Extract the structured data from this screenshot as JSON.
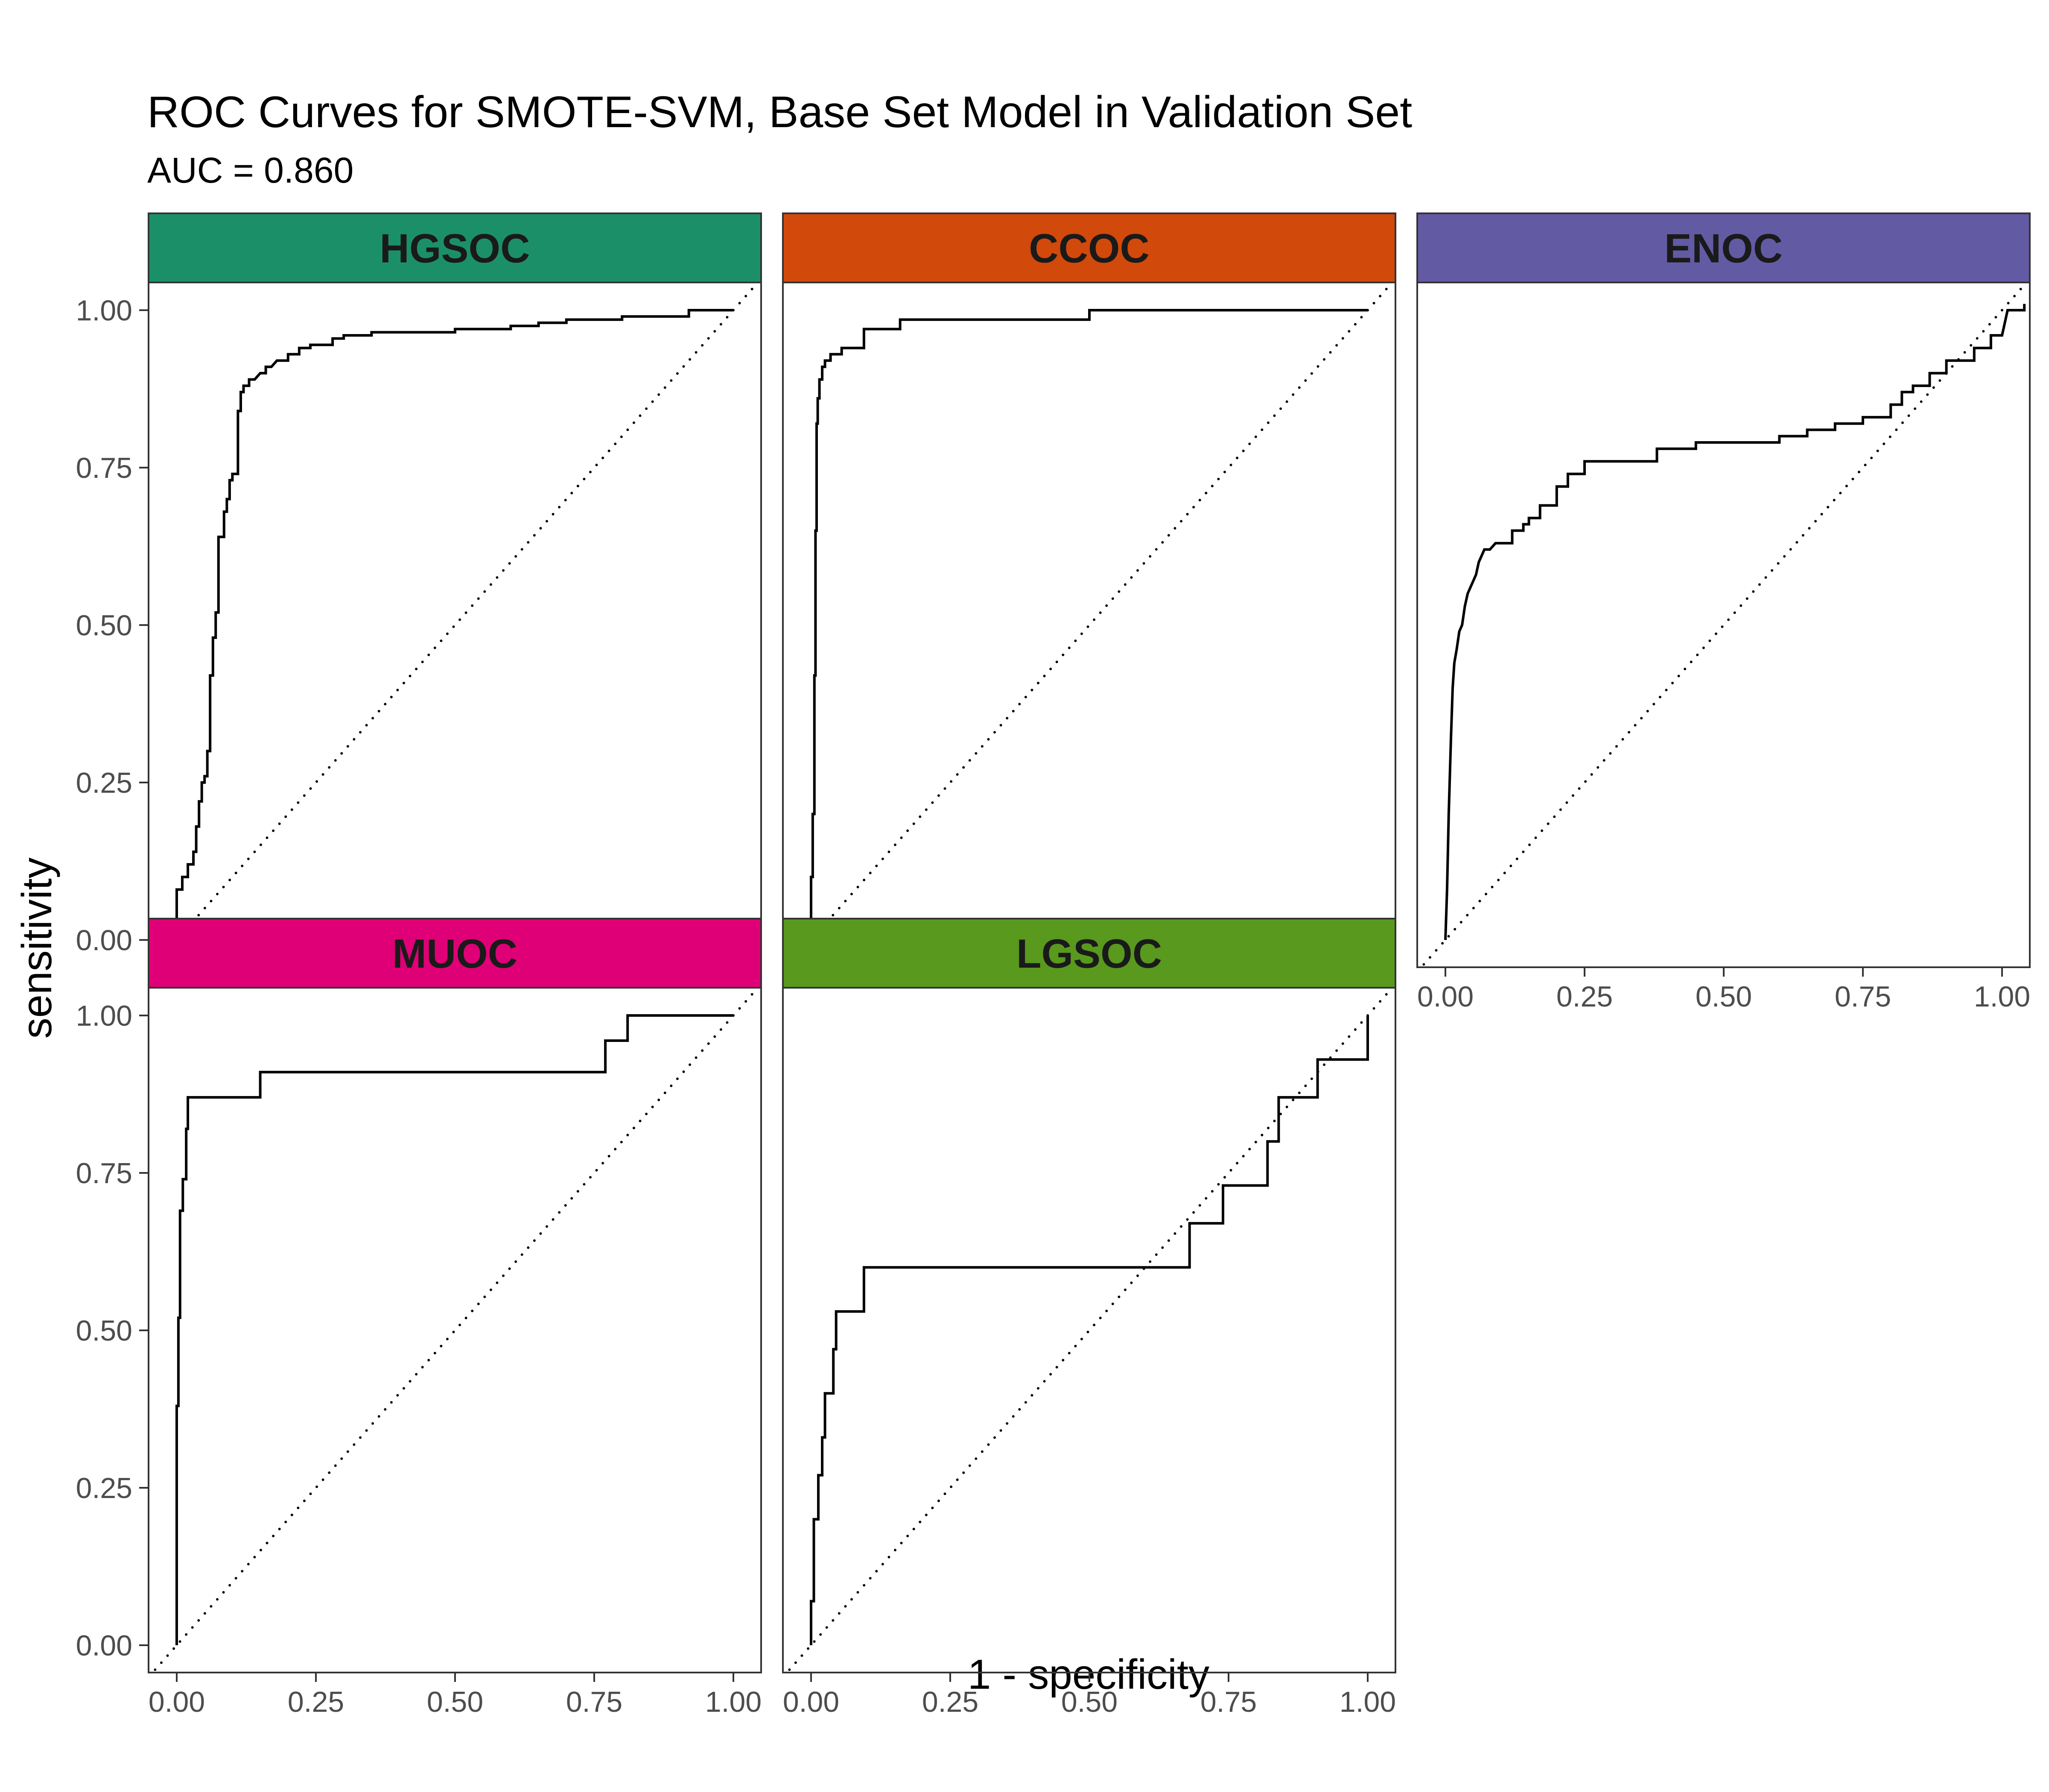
{
  "title": "ROC Curves for SMOTE-SVM, Base Set Model in Validation Set",
  "subtitle": "AUC = 0.860",
  "chart_data": {
    "type": "line",
    "layout": "faceted",
    "xlabel": "1 - specificity",
    "ylabel": "sensitivity",
    "xlim": [
      0,
      1
    ],
    "ylim": [
      0,
      1
    ],
    "x_ticks": [
      "0.00",
      "0.25",
      "0.50",
      "0.75",
      "1.00"
    ],
    "y_ticks": [
      "0.00",
      "0.25",
      "0.50",
      "0.75",
      "1.00"
    ],
    "grid": false,
    "reference_line": {
      "style": "dotted",
      "from": [
        0,
        0
      ],
      "to": [
        1,
        1
      ]
    },
    "panels": [
      {
        "name": "HGSOC",
        "strip_color": "#1b9068",
        "points": [
          [
            0,
            0
          ],
          [
            0,
            0.08
          ],
          [
            0.01,
            0.08
          ],
          [
            0.01,
            0.1
          ],
          [
            0.02,
            0.1
          ],
          [
            0.02,
            0.12
          ],
          [
            0.03,
            0.12
          ],
          [
            0.03,
            0.14
          ],
          [
            0.035,
            0.14
          ],
          [
            0.035,
            0.18
          ],
          [
            0.04,
            0.18
          ],
          [
            0.04,
            0.22
          ],
          [
            0.045,
            0.22
          ],
          [
            0.045,
            0.25
          ],
          [
            0.05,
            0.25
          ],
          [
            0.05,
            0.26
          ],
          [
            0.055,
            0.26
          ],
          [
            0.055,
            0.3
          ],
          [
            0.06,
            0.3
          ],
          [
            0.06,
            0.42
          ],
          [
            0.065,
            0.42
          ],
          [
            0.065,
            0.48
          ],
          [
            0.07,
            0.48
          ],
          [
            0.07,
            0.52
          ],
          [
            0.075,
            0.52
          ],
          [
            0.075,
            0.64
          ],
          [
            0.085,
            0.64
          ],
          [
            0.085,
            0.68
          ],
          [
            0.09,
            0.68
          ],
          [
            0.09,
            0.7
          ],
          [
            0.095,
            0.7
          ],
          [
            0.095,
            0.73
          ],
          [
            0.1,
            0.73
          ],
          [
            0.1,
            0.74
          ],
          [
            0.11,
            0.74
          ],
          [
            0.11,
            0.84
          ],
          [
            0.115,
            0.84
          ],
          [
            0.115,
            0.87
          ],
          [
            0.12,
            0.87
          ],
          [
            0.12,
            0.88
          ],
          [
            0.13,
            0.88
          ],
          [
            0.13,
            0.89
          ],
          [
            0.14,
            0.89
          ],
          [
            0.15,
            0.9
          ],
          [
            0.16,
            0.9
          ],
          [
            0.16,
            0.91
          ],
          [
            0.17,
            0.91
          ],
          [
            0.18,
            0.92
          ],
          [
            0.2,
            0.92
          ],
          [
            0.2,
            0.93
          ],
          [
            0.22,
            0.93
          ],
          [
            0.22,
            0.94
          ],
          [
            0.24,
            0.94
          ],
          [
            0.24,
            0.945
          ],
          [
            0.28,
            0.945
          ],
          [
            0.28,
            0.955
          ],
          [
            0.3,
            0.955
          ],
          [
            0.3,
            0.96
          ],
          [
            0.35,
            0.96
          ],
          [
            0.35,
            0.965
          ],
          [
            0.5,
            0.965
          ],
          [
            0.5,
            0.97
          ],
          [
            0.6,
            0.97
          ],
          [
            0.6,
            0.975
          ],
          [
            0.65,
            0.975
          ],
          [
            0.65,
            0.98
          ],
          [
            0.7,
            0.98
          ],
          [
            0.7,
            0.985
          ],
          [
            0.8,
            0.985
          ],
          [
            0.8,
            0.99
          ],
          [
            0.92,
            0.99
          ],
          [
            0.92,
            1
          ],
          [
            1,
            1
          ]
        ]
      },
      {
        "name": "CCOC",
        "strip_color": "#d1490b",
        "points": [
          [
            0,
            0
          ],
          [
            0,
            0.1
          ],
          [
            0.003,
            0.1
          ],
          [
            0.003,
            0.2
          ],
          [
            0.006,
            0.2
          ],
          [
            0.006,
            0.42
          ],
          [
            0.008,
            0.42
          ],
          [
            0.008,
            0.65
          ],
          [
            0.01,
            0.65
          ],
          [
            0.01,
            0.82
          ],
          [
            0.012,
            0.82
          ],
          [
            0.012,
            0.86
          ],
          [
            0.015,
            0.86
          ],
          [
            0.015,
            0.89
          ],
          [
            0.02,
            0.89
          ],
          [
            0.02,
            0.91
          ],
          [
            0.025,
            0.91
          ],
          [
            0.025,
            0.92
          ],
          [
            0.035,
            0.92
          ],
          [
            0.035,
            0.93
          ],
          [
            0.055,
            0.93
          ],
          [
            0.055,
            0.94
          ],
          [
            0.095,
            0.94
          ],
          [
            0.095,
            0.97
          ],
          [
            0.16,
            0.97
          ],
          [
            0.16,
            0.985
          ],
          [
            0.5,
            0.985
          ],
          [
            0.5,
            1
          ],
          [
            1,
            1
          ]
        ]
      },
      {
        "name": "ENOC",
        "strip_color": "#635aa4",
        "points": [
          [
            0,
            0
          ],
          [
            0.003,
            0.08
          ],
          [
            0.006,
            0.2
          ],
          [
            0.01,
            0.32
          ],
          [
            0.013,
            0.4
          ],
          [
            0.016,
            0.44
          ],
          [
            0.02,
            0.46
          ],
          [
            0.025,
            0.49
          ],
          [
            0.03,
            0.5
          ],
          [
            0.035,
            0.53
          ],
          [
            0.04,
            0.55
          ],
          [
            0.045,
            0.56
          ],
          [
            0.05,
            0.57
          ],
          [
            0.055,
            0.58
          ],
          [
            0.06,
            0.6
          ],
          [
            0.065,
            0.61
          ],
          [
            0.07,
            0.62
          ],
          [
            0.08,
            0.62
          ],
          [
            0.09,
            0.63
          ],
          [
            0.12,
            0.63
          ],
          [
            0.12,
            0.65
          ],
          [
            0.14,
            0.65
          ],
          [
            0.14,
            0.66
          ],
          [
            0.15,
            0.66
          ],
          [
            0.15,
            0.67
          ],
          [
            0.17,
            0.67
          ],
          [
            0.17,
            0.69
          ],
          [
            0.2,
            0.69
          ],
          [
            0.2,
            0.72
          ],
          [
            0.22,
            0.72
          ],
          [
            0.22,
            0.74
          ],
          [
            0.25,
            0.74
          ],
          [
            0.25,
            0.76
          ],
          [
            0.38,
            0.76
          ],
          [
            0.38,
            0.78
          ],
          [
            0.45,
            0.78
          ],
          [
            0.45,
            0.79
          ],
          [
            0.6,
            0.79
          ],
          [
            0.6,
            0.8
          ],
          [
            0.65,
            0.8
          ],
          [
            0.65,
            0.81
          ],
          [
            0.7,
            0.81
          ],
          [
            0.7,
            0.82
          ],
          [
            0.75,
            0.82
          ],
          [
            0.75,
            0.83
          ],
          [
            0.8,
            0.83
          ],
          [
            0.8,
            0.85
          ],
          [
            0.82,
            0.85
          ],
          [
            0.82,
            0.87
          ],
          [
            0.84,
            0.87
          ],
          [
            0.84,
            0.88
          ],
          [
            0.87,
            0.88
          ],
          [
            0.87,
            0.9
          ],
          [
            0.9,
            0.9
          ],
          [
            0.9,
            0.92
          ],
          [
            0.95,
            0.92
          ],
          [
            0.95,
            0.94
          ],
          [
            0.98,
            0.94
          ],
          [
            0.98,
            0.96
          ],
          [
            1,
            0.96
          ],
          [
            1.01,
            1
          ],
          [
            1.04,
            1
          ],
          [
            1.04,
            1.01
          ]
        ]
      },
      {
        "name": "MUOC",
        "strip_color": "#df0077",
        "points": [
          [
            0,
            0
          ],
          [
            0,
            0.38
          ],
          [
            0.003,
            0.38
          ],
          [
            0.003,
            0.52
          ],
          [
            0.006,
            0.52
          ],
          [
            0.006,
            0.69
          ],
          [
            0.011,
            0.69
          ],
          [
            0.011,
            0.74
          ],
          [
            0.017,
            0.74
          ],
          [
            0.017,
            0.82
          ],
          [
            0.02,
            0.82
          ],
          [
            0.02,
            0.87
          ],
          [
            0.15,
            0.87
          ],
          [
            0.15,
            0.91
          ],
          [
            0.77,
            0.91
          ],
          [
            0.77,
            0.96
          ],
          [
            0.81,
            0.96
          ],
          [
            0.81,
            1
          ],
          [
            1,
            1
          ]
        ]
      },
      {
        "name": "LGSOC",
        "strip_color": "#58991e",
        "points": [
          [
            0,
            0
          ],
          [
            0,
            0.07
          ],
          [
            0.005,
            0.07
          ],
          [
            0.005,
            0.2
          ],
          [
            0.013,
            0.2
          ],
          [
            0.013,
            0.27
          ],
          [
            0.02,
            0.27
          ],
          [
            0.02,
            0.33
          ],
          [
            0.025,
            0.33
          ],
          [
            0.025,
            0.4
          ],
          [
            0.04,
            0.4
          ],
          [
            0.04,
            0.47
          ],
          [
            0.045,
            0.47
          ],
          [
            0.045,
            0.53
          ],
          [
            0.095,
            0.53
          ],
          [
            0.095,
            0.6
          ],
          [
            0.68,
            0.6
          ],
          [
            0.68,
            0.67
          ],
          [
            0.74,
            0.67
          ],
          [
            0.74,
            0.73
          ],
          [
            0.82,
            0.73
          ],
          [
            0.82,
            0.8
          ],
          [
            0.84,
            0.8
          ],
          [
            0.84,
            0.87
          ],
          [
            0.91,
            0.87
          ],
          [
            0.91,
            0.93
          ],
          [
            1,
            0.93
          ],
          [
            1,
            1
          ]
        ]
      }
    ]
  }
}
